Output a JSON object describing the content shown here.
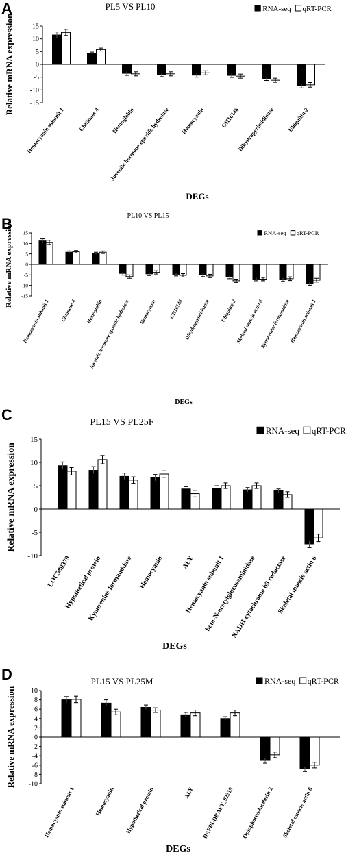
{
  "chart_data": [
    {
      "panel_letter": "A",
      "type": "bar",
      "title": "PL5 VS PL10",
      "xlabel": "DEGs",
      "ylabel": "Relative mRNA expression",
      "ylim": [
        -15,
        15
      ],
      "yticks": [
        15,
        10,
        5,
        0,
        -5,
        -10,
        -15
      ],
      "categories": [
        "Hemocyanin subunit 1",
        "Chitinase 4",
        "Hemoglobin",
        "Juvenile hormone epoxide hydrolase",
        "Hemocyanin",
        "GH16146",
        "Dihydropyrimidinase",
        "Ubiquitin-2"
      ],
      "series": [
        {
          "name": "RNA-seq",
          "values": [
            11.5,
            4.3,
            -3.5,
            -4.0,
            -4.2,
            -4.3,
            -5.5,
            -8.3
          ],
          "errors": [
            1.2,
            0.5,
            0.8,
            0.8,
            0.8,
            0.8,
            0.8,
            0.9
          ]
        },
        {
          "name": "qRT-PCR",
          "values": [
            12.5,
            5.8,
            -3.7,
            -3.7,
            -3.3,
            -4.6,
            -6.2,
            -8.0
          ],
          "errors": [
            1.2,
            0.6,
            0.8,
            0.8,
            0.8,
            0.8,
            0.8,
            0.9
          ]
        }
      ],
      "grid": false,
      "legend": "top-right"
    },
    {
      "panel_letter": "B",
      "type": "bar",
      "title": "PL10 VS PL15",
      "xlabel": "DEGs",
      "ylabel": "Relative mRNA expression",
      "ylim": [
        -15,
        15
      ],
      "yticks": [
        15,
        10,
        5,
        0,
        -5,
        -10,
        -15
      ],
      "categories": [
        "Hemocyanin subunit 1",
        "Chitinase 4",
        "Hemoglobin",
        "Juvenile hormone epoxide hydrolase",
        "Hemocyanin",
        "GH16146",
        "Dihydropyrimidinase",
        "Ubiquitin-2",
        "Skeletal muscle actin 6",
        "Kynurenine formamidase",
        "Hemocyanin subunit 1"
      ],
      "series": [
        {
          "name": "RNA-seq",
          "values": [
            11.2,
            5.8,
            5.2,
            -4.3,
            -4.5,
            -4.7,
            -5.0,
            -6.0,
            -7.0,
            -7.2,
            -9.0
          ],
          "errors": [
            1.0,
            0.6,
            0.6,
            0.8,
            0.8,
            0.8,
            0.8,
            0.8,
            0.8,
            0.9,
            0.9
          ]
        },
        {
          "name": "qRT-PCR",
          "values": [
            10.5,
            6.0,
            5.8,
            -5.8,
            -3.8,
            -5.2,
            -5.5,
            -7.8,
            -7.0,
            -6.8,
            -7.5
          ],
          "errors": [
            1.0,
            0.6,
            0.6,
            0.8,
            0.8,
            0.8,
            0.8,
            0.8,
            0.8,
            0.9,
            0.9
          ]
        }
      ],
      "grid": false,
      "legend": "top-right"
    },
    {
      "panel_letter": "C",
      "type": "bar",
      "title": "PL15 VS PL25F",
      "xlabel": "DEGs",
      "ylabel": "Relative mRNA expression",
      "ylim": [
        -10,
        15
      ],
      "yticks": [
        15,
        10,
        5,
        0,
        -5,
        -10
      ],
      "categories": [
        "LOC580379",
        "Hypothetical protein",
        "Kynurenine formamidase",
        "Hemocyanin",
        "ALY",
        "Hemocyanin subunit 1",
        "beta-N-acetylglucosaminidase",
        "NADH-cytochrome b5 reductase",
        "Skeletal muscle actin 6"
      ],
      "series": [
        {
          "name": "RNA-seq",
          "values": [
            9.3,
            8.3,
            7.0,
            6.7,
            4.3,
            4.4,
            4.1,
            3.9,
            -7.5
          ],
          "errors": [
            0.8,
            0.8,
            0.7,
            0.7,
            0.5,
            0.6,
            0.5,
            0.4,
            0.8
          ]
        },
        {
          "name": "qRT-PCR",
          "values": [
            8.1,
            10.6,
            6.2,
            7.5,
            3.3,
            5.0,
            5.0,
            3.1,
            -6.2
          ],
          "errors": [
            0.8,
            0.9,
            0.7,
            0.7,
            0.7,
            0.6,
            0.6,
            0.6,
            0.8
          ]
        }
      ],
      "grid": false,
      "legend": "top-right"
    },
    {
      "panel_letter": "D",
      "type": "bar",
      "title": "PL15 VS PL25M",
      "xlabel": "DEGs",
      "ylabel": "Relative mRNA expression",
      "ylim": [
        -10,
        10
      ],
      "yticks": [
        10,
        8,
        6,
        4,
        2,
        0,
        -2,
        -4,
        -6,
        -8,
        -10
      ],
      "categories": [
        "Hemocyanin subunit 1",
        "Hemocyanin",
        "Hypothetical protein",
        "ALY",
        "DAPPUDRAFT_92219",
        "Oplophorus-luciferin 2",
        "Skeletal muscle actin 6"
      ],
      "series": [
        {
          "name": "RNA-seq",
          "values": [
            8.0,
            7.3,
            6.4,
            4.8,
            4.0,
            -5.0,
            -6.8
          ],
          "errors": [
            0.7,
            0.7,
            0.5,
            0.5,
            0.4,
            0.6,
            0.6
          ]
        },
        {
          "name": "qRT-PCR",
          "values": [
            8.1,
            5.4,
            5.8,
            5.2,
            5.2,
            -3.8,
            -6.0
          ],
          "errors": [
            0.7,
            0.6,
            0.5,
            0.6,
            0.6,
            0.6,
            0.6
          ]
        }
      ],
      "grid": false,
      "legend": "top-right"
    }
  ],
  "colors": {
    "rna_seq": "#000000",
    "qrt_pcr": "#ffffff",
    "axis": "#000000",
    "text": "#000000"
  }
}
